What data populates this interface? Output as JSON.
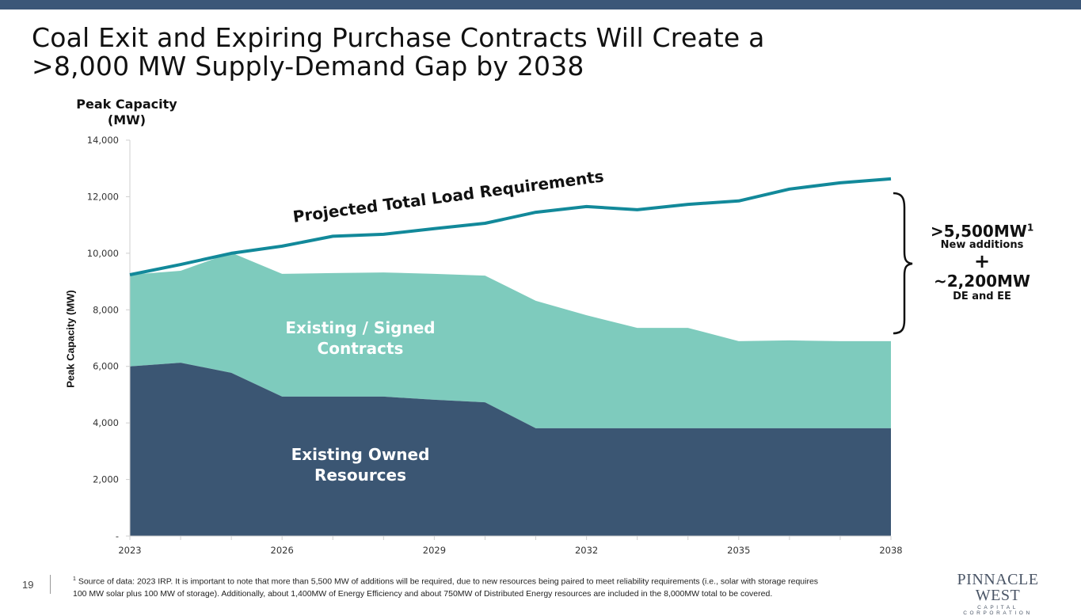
{
  "slide": {
    "title_line1": "Coal Exit and Expiring Purchase Contracts Will Create a",
    "title_line2": ">8,000 MW Supply-Demand Gap by 2038",
    "page_number": "19",
    "colors": {
      "top_bar": "#3b5778",
      "owned": "#3b5673",
      "contracts": "#7ecbbd",
      "load_line": "#12899a"
    }
  },
  "annotation": {
    "new_additions_value": ">5,500MW",
    "new_additions_sup": "1",
    "new_additions_label": "New additions",
    "plus": "+",
    "de_ee_value": "~2,200MW",
    "de_ee_label": "DE and EE"
  },
  "footnote": {
    "sup": "1",
    "line1": " Source of data: 2023 IRP. It is important to note that more than 5,500 MW of additions will be required, due to new resources being paired to meet reliability requirements (i.e., solar with storage requires",
    "line2": "100 MW solar plus 100 MW of storage).  Additionally, about 1,400MW of Energy Efficiency and about 750MW of Distributed Energy resources are included in the 8,000MW total to be covered."
  },
  "logo": {
    "name": "PINNACLE WEST",
    "sub": "CAPITAL CORPORATION"
  },
  "chart_data": {
    "type": "area",
    "title": "",
    "ylabel_top": "Peak Capacity (MW)",
    "ylabel": "Peak Capacity (MW)",
    "xlabel": "",
    "ylim": [
      0,
      14000
    ],
    "yticks": [
      0,
      2000,
      4000,
      6000,
      8000,
      10000,
      12000,
      14000
    ],
    "ytick_labels": [
      "-",
      "2,000",
      "4,000",
      "6,000",
      "8,000",
      "10,000",
      "12,000",
      "14,000"
    ],
    "x": [
      2023,
      2024,
      2025,
      2026,
      2027,
      2028,
      2029,
      2030,
      2031,
      2032,
      2033,
      2034,
      2035,
      2036,
      2037,
      2038
    ],
    "xtick_labels": [
      "2023",
      "2026",
      "2029",
      "2032",
      "2035",
      "2038"
    ],
    "xtick_label_years": [
      2023,
      2026,
      2029,
      2032,
      2035,
      2038
    ],
    "grid": false,
    "series": [
      {
        "name": "Existing Owned Resources",
        "kind": "stacked-area",
        "label_line1": "Existing Owned",
        "label_line2": "Resources",
        "values": [
          6000,
          6130,
          5770,
          4930,
          4930,
          4930,
          4820,
          4730,
          3810,
          3810,
          3810,
          3810,
          3810,
          3810,
          3810,
          3810
        ]
      },
      {
        "name": "Existing / Signed Contracts",
        "kind": "stacked-area",
        "label_line1": "Existing / Signed",
        "label_line2": "Contracts",
        "values": [
          3240,
          3250,
          4250,
          4340,
          4370,
          4390,
          4450,
          4480,
          4510,
          4000,
          3550,
          3550,
          3080,
          3110,
          3080,
          3080
        ]
      },
      {
        "name": "Projected Total Load Requirements",
        "kind": "line",
        "label": "Projected Total Load Requirements",
        "values": [
          9240,
          9600,
          10000,
          10250,
          10600,
          10670,
          10870,
          11060,
          11450,
          11650,
          11540,
          11730,
          11850,
          12270,
          12490,
          12630
        ]
      }
    ]
  }
}
